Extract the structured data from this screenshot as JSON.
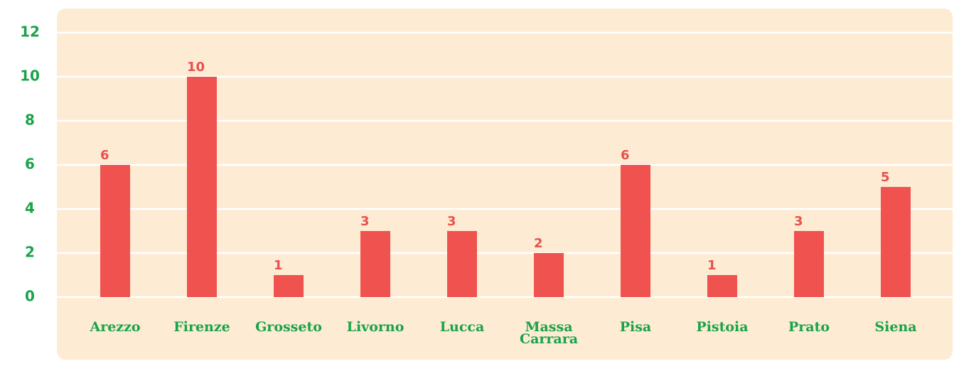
{
  "chart_data": {
    "type": "bar",
    "categories": [
      "Arezzo",
      "Firenze",
      "Grosseto",
      "Livorno",
      "Lucca",
      "Massa Carrara",
      "Pisa",
      "Pistoia",
      "Prato",
      "Siena"
    ],
    "values": [
      6,
      10,
      1,
      3,
      3,
      2,
      6,
      1,
      3,
      5
    ],
    "color": "#f0524f",
    "ylim": [
      0,
      12
    ],
    "yticks": [
      0,
      2,
      4,
      6,
      8,
      10,
      12
    ],
    "grid": true
  }
}
